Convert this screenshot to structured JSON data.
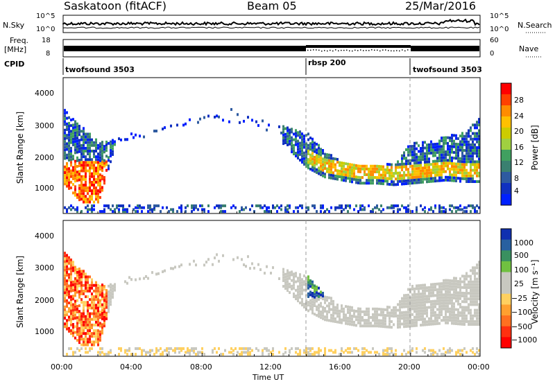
{
  "header": {
    "station": "Saskatoon (fitACF)",
    "beam": "Beam 05",
    "date": "25/Mar/2016"
  },
  "top_panels": {
    "nsky_label": "N.Sky",
    "nsky_ticks": [
      "10^5",
      "10^0"
    ],
    "nsearch_label": "N.Search",
    "freq_label_line1": "Freq.",
    "freq_label_line2": "[MHz]",
    "freq_ticks": [
      "18",
      "8"
    ],
    "nave_ticks": [
      "60",
      "0"
    ],
    "nave_label": "Nave",
    "cpid_label": "CPID"
  },
  "cpid_segments": [
    {
      "name": "twofsound 3503",
      "start_hour": 0,
      "end_hour": 14
    },
    {
      "name": "rbsp 200",
      "start_hour": 14,
      "end_hour": 20
    },
    {
      "name": "twofsound 3503",
      "start_hour": 20,
      "end_hour": 24
    }
  ],
  "power_panel": {
    "ylabel": "Slant Range [km]",
    "yticks": [
      "4000",
      "3000",
      "2000",
      "1000"
    ],
    "cbar_label": "Power [dB]",
    "cbar_ticks": [
      "28",
      "24",
      "20",
      "16",
      "12",
      "8",
      "4"
    ],
    "cbar_colors": [
      "#ff0000",
      "#ff4000",
      "#ff8c00",
      "#ffc000",
      "#cccc00",
      "#a0d040",
      "#40a060",
      "#3a8070",
      "#2e5aa0",
      "#1030c0",
      "#0020ff"
    ]
  },
  "velocity_panel": {
    "ylabel": "Slant Range [km]",
    "yticks": [
      "4000",
      "3000",
      "2000",
      "1000"
    ],
    "cbar_label": "Velocity [m s⁻¹]",
    "cbar_ticks": [
      "1000",
      "500",
      "100",
      "25",
      "−25",
      "−100",
      "−500",
      "−1000"
    ],
    "cbar_colors": [
      "#1030b0",
      "#2860a0",
      "#3a9060",
      "#70c040",
      "#c8c8c0",
      "#c8c8c0",
      "#ffd060",
      "#ffa030",
      "#ff7020",
      "#ff3010",
      "#ff0000"
    ]
  },
  "x_axis": {
    "label": "Time UT",
    "ticks": [
      "00:00",
      "04:00",
      "08:00",
      "12:00",
      "16:00",
      "20:00",
      "00:00"
    ]
  },
  "chart_data": {
    "type": "heatmap",
    "title": "Saskatoon (fitACF) Beam 05 25/Mar/2016",
    "xlabel": "Time UT",
    "ylabel": "Slant Range [km]",
    "xlim_hours": [
      0,
      24
    ],
    "ylim": [
      180,
      4500
    ],
    "panels": [
      "Power [dB]",
      "Velocity [m s⁻¹]"
    ],
    "power_scale": [
      0,
      30
    ],
    "velocity_scale": [
      -1000,
      1000
    ],
    "echo_region": {
      "description_points_hours": [
        0,
        1,
        2,
        3,
        4,
        6,
        8,
        10,
        12,
        14,
        15,
        16,
        17,
        18,
        19,
        20,
        21,
        22,
        23,
        24
      ],
      "lower_edge_km": [
        1100,
        500,
        500,
        2400,
        2400,
        2900,
        3000,
        3000,
        2700,
        1600,
        1300,
        1200,
        1100,
        1100,
        1050,
        1100,
        1150,
        1200,
        1150,
        1150
      ],
      "upper_edge_km": [
        3500,
        2900,
        2400,
        2500,
        2700,
        2900,
        3300,
        3500,
        3000,
        2700,
        2100,
        1800,
        1700,
        1700,
        1700,
        2400,
        2400,
        2600,
        2700,
        3200
      ]
    }
  }
}
